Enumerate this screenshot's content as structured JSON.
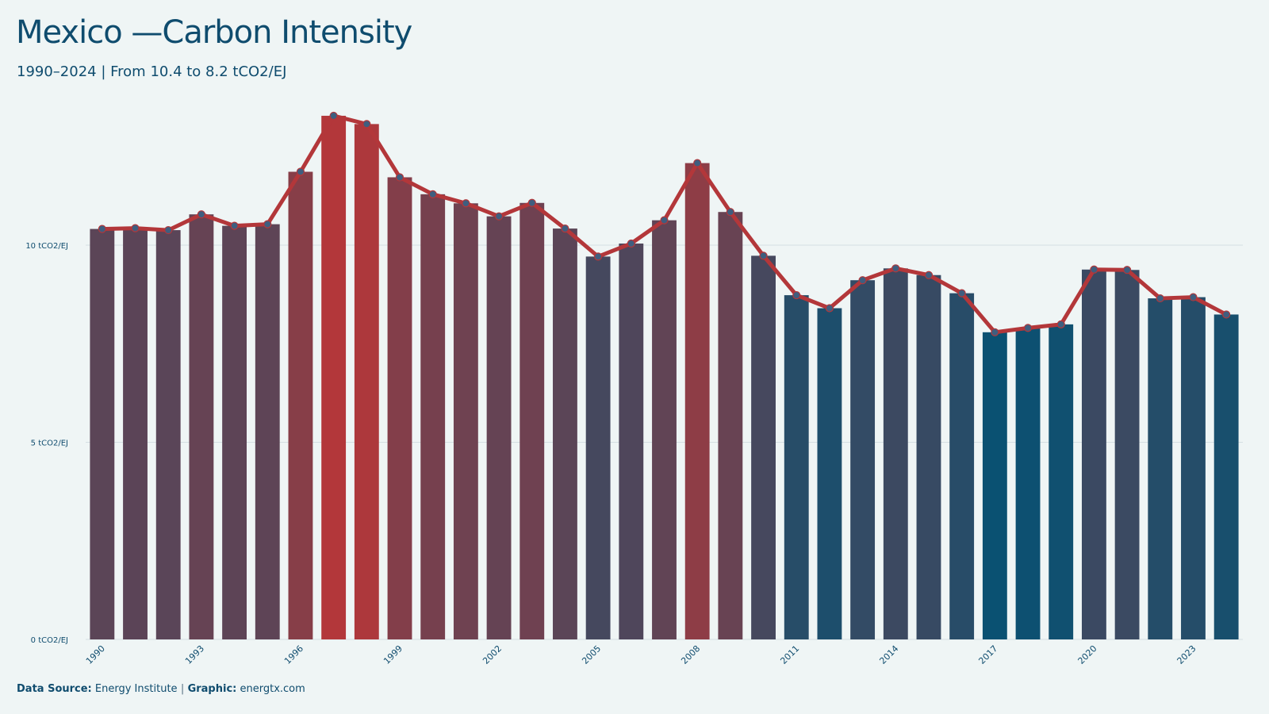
{
  "chart_data": {
    "type": "bar",
    "title": "Mexico —Carbon Intensity",
    "subtitle": "1990–2024 | From 10.4 to 8.2 tCO2/EJ",
    "unit": "tCO2/EJ",
    "ylim": [
      0,
      13.5
    ],
    "yticks": [
      0,
      5,
      10
    ],
    "ytick_labels": [
      "0 tCO2/EJ",
      "5 tCO2/EJ",
      "10 tCO2/EJ"
    ],
    "xtick_labels": [
      "1990",
      "1993",
      "1996",
      "1999",
      "2002",
      "2005",
      "2008",
      "2011",
      "2014",
      "2017",
      "2020",
      "2023"
    ],
    "categories": [
      "1990",
      "1991",
      "1992",
      "1993",
      "1994",
      "1995",
      "1996",
      "1997",
      "1998",
      "1999",
      "2000",
      "2001",
      "2002",
      "2003",
      "2004",
      "2005",
      "2006",
      "2007",
      "2008",
      "2009",
      "2010",
      "2011",
      "2012",
      "2013",
      "2014",
      "2015",
      "2016",
      "2017",
      "2018",
      "2019",
      "2020",
      "2021",
      "2022",
      "2023",
      "2024"
    ],
    "values": [
      10.41,
      10.43,
      10.38,
      10.78,
      10.49,
      10.53,
      11.86,
      13.28,
      13.07,
      11.72,
      11.29,
      11.06,
      10.73,
      11.07,
      10.42,
      9.71,
      10.04,
      10.63,
      12.08,
      10.84,
      9.73,
      8.73,
      8.4,
      9.11,
      9.41,
      9.24,
      8.78,
      7.79,
      7.9,
      7.99,
      9.38,
      9.37,
      8.65,
      8.68,
      8.24
    ],
    "grid": true,
    "colors": {
      "high": "#b3373a",
      "low": "#0a5172",
      "line": "#b3373a",
      "marker": "#3f5e7f"
    }
  },
  "footer": {
    "source_label": "Data Source:",
    "source_value": "Energy Institute",
    "separator": "|",
    "graphic_label": "Graphic:",
    "graphic_value": "energtx.com"
  }
}
